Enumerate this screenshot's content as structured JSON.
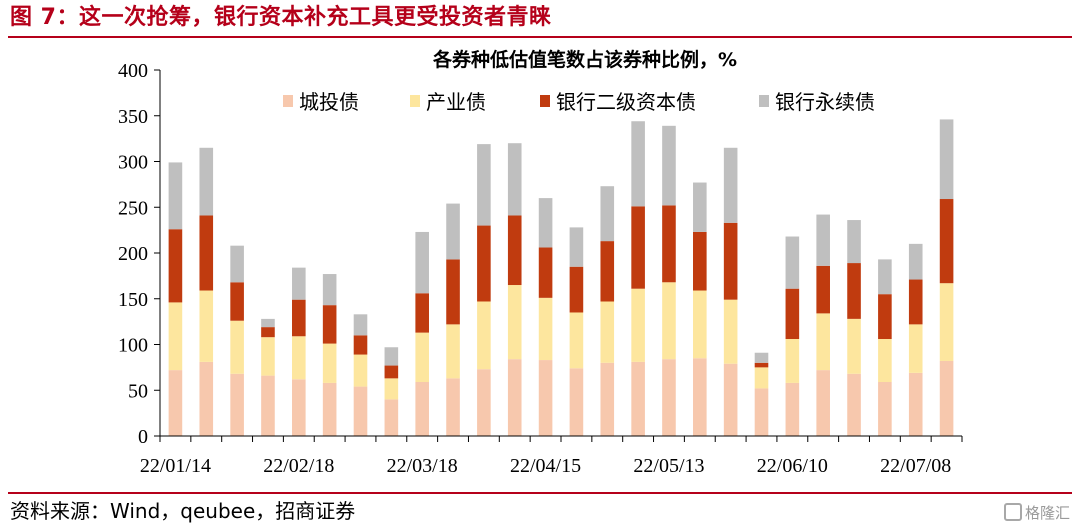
{
  "figure": {
    "title": "图 7：这一次抢筹，银行资本补充工具更受投资者青睐",
    "source": "资料来源：Wind，qeubee，招商证券",
    "watermark": "格隆汇"
  },
  "colors": {
    "accent": "#b5001a",
    "series": [
      "#f7c8ad",
      "#fde69e",
      "#c03b0f",
      "#bfbfbf"
    ]
  },
  "chart_data": {
    "type": "bar",
    "stacked": true,
    "title": "各券种低估值笔数占该券种比例，%",
    "ylim": [
      0,
      400
    ],
    "yticks": [
      0,
      50,
      100,
      150,
      200,
      250,
      300,
      350,
      400
    ],
    "legend_position": "top",
    "xtick_labels": [
      {
        "index": 0,
        "label": "22/01/14"
      },
      {
        "index": 4,
        "label": "22/02/18"
      },
      {
        "index": 8,
        "label": "22/03/18"
      },
      {
        "index": 12,
        "label": "22/04/15"
      },
      {
        "index": 16,
        "label": "22/05/13"
      },
      {
        "index": 20,
        "label": "22/06/10"
      },
      {
        "index": 24,
        "label": "22/07/08"
      }
    ],
    "series": [
      {
        "name": "城投债",
        "values": [
          72,
          81,
          68,
          66,
          62,
          58,
          54,
          40,
          59,
          63,
          73,
          84,
          83,
          74,
          80,
          81,
          84,
          85,
          79,
          52,
          58,
          72,
          68,
          59,
          69,
          82
        ]
      },
      {
        "name": "产业债",
        "values": [
          74,
          78,
          58,
          42,
          47,
          43,
          35,
          23,
          54,
          59,
          74,
          81,
          68,
          61,
          67,
          80,
          84,
          74,
          70,
          23,
          48,
          62,
          60,
          47,
          53,
          85
        ]
      },
      {
        "name": "银行二级资本债",
        "values": [
          80,
          82,
          42,
          11,
          40,
          42,
          21,
          14,
          43,
          71,
          83,
          76,
          55,
          50,
          66,
          90,
          84,
          64,
          84,
          5,
          55,
          52,
          61,
          49,
          49,
          92
        ]
      },
      {
        "name": "银行永续债",
        "values": [
          73,
          74,
          40,
          9,
          35,
          34,
          23,
          20,
          67,
          61,
          89,
          79,
          54,
          43,
          60,
          93,
          87,
          54,
          82,
          11,
          57,
          56,
          47,
          38,
          39,
          87
        ]
      }
    ]
  }
}
